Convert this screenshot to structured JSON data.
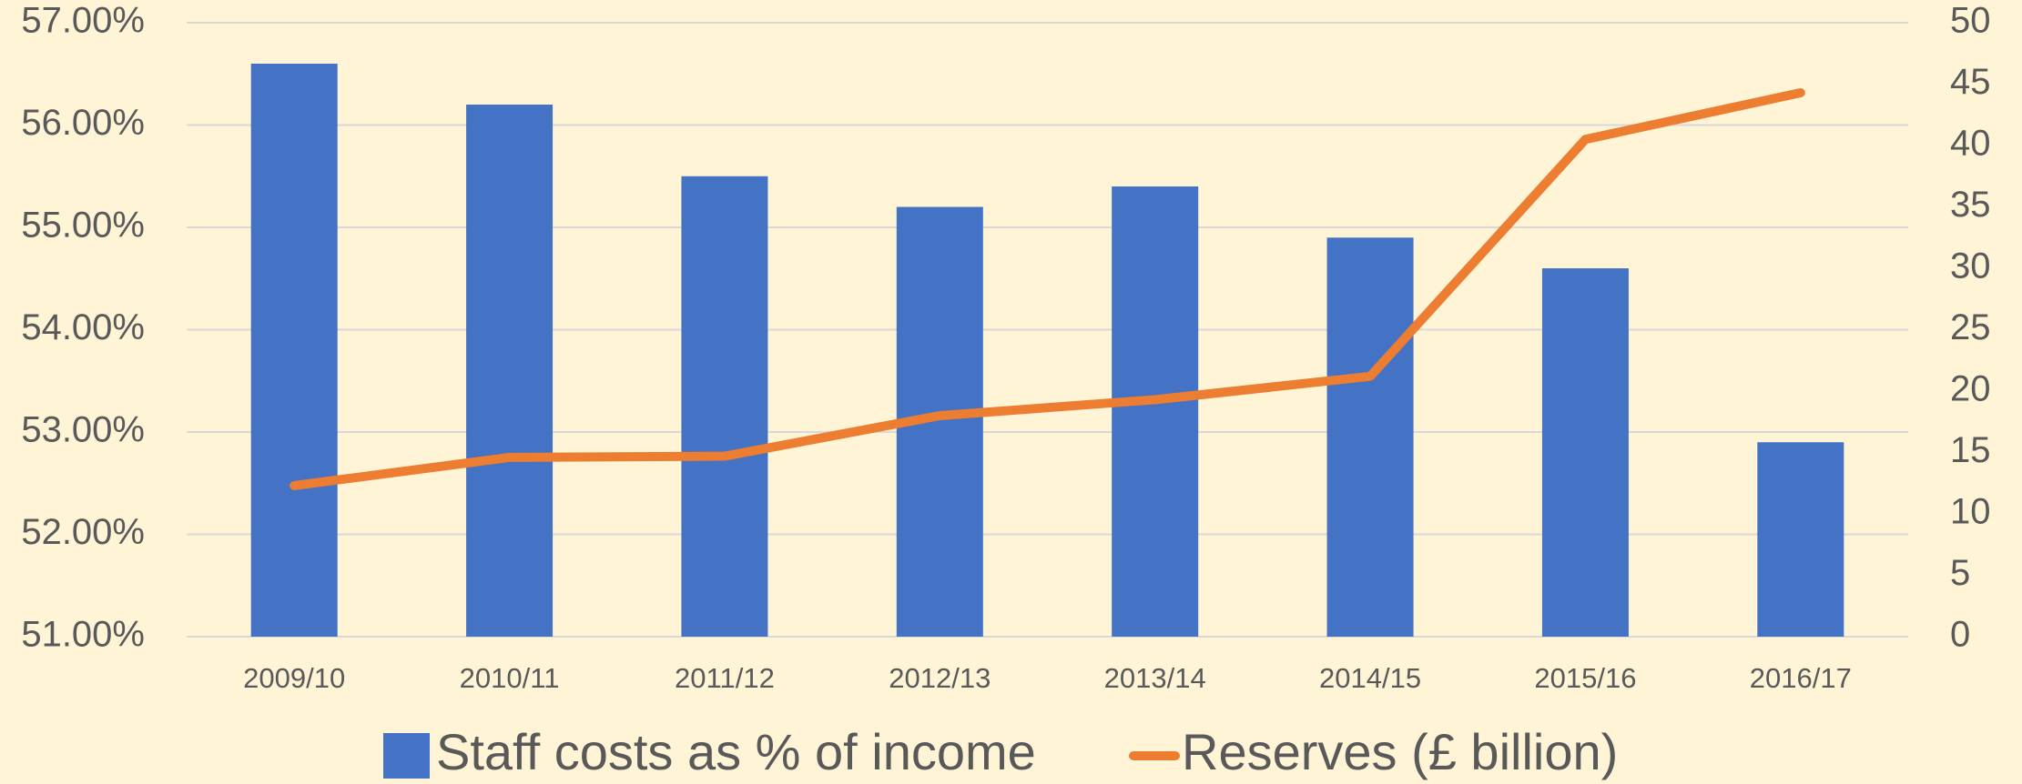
{
  "chart_data": {
    "type": "bar_line",
    "categories": [
      "2009/10",
      "2010/11",
      "2011/12",
      "2012/13",
      "2013/14",
      "2014/15",
      "2015/16",
      "2016/17"
    ],
    "series": [
      {
        "name": "Staff costs as % of income",
        "color": "#4472c4",
        "type": "bar",
        "values": [
          56.6,
          56.2,
          55.5,
          55.2,
          55.4,
          54.9,
          54.6,
          52.9
        ]
      },
      {
        "name": "Reserves (£ billion)",
        "color": "#ed7d31",
        "type": "line",
        "axis": "y2",
        "values": [
          12.3,
          14.6,
          14.7,
          18.0,
          19.3,
          21.2,
          40.5,
          44.3
        ]
      }
    ],
    "ylim": [
      51,
      57
    ],
    "yticks": [
      {
        "value": 51,
        "label": "51.00%"
      },
      {
        "value": 52,
        "label": "52.00%"
      },
      {
        "value": 53,
        "label": "53.00%"
      },
      {
        "value": 54,
        "label": "54.00%"
      },
      {
        "value": 55,
        "label": "55.00%"
      },
      {
        "value": 56,
        "label": "56.00%"
      },
      {
        "value": 57,
        "label": "57.00%"
      }
    ],
    "y2lim": [
      0,
      50
    ],
    "y2ticks": [
      0,
      5,
      10,
      15,
      20,
      25,
      30,
      35,
      40,
      45,
      50
    ],
    "grid": true,
    "legend": "bottom"
  }
}
